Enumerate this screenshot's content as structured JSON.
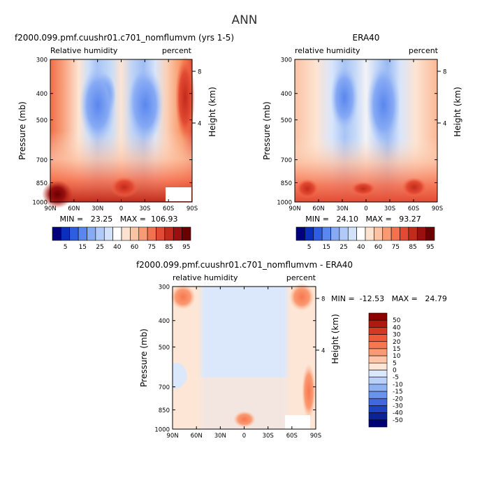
{
  "page_title": "ANN",
  "chart_data": [
    {
      "type": "contour",
      "panel": "model",
      "title": "f2000.099.pmf.cuushr01.c701_nomflumvm (yrs 1-5)",
      "variable_label": "Relative humidity",
      "units_label": "percent",
      "ylabel": "Pressure (mb)",
      "ylabel_right": "Height (km)",
      "x_ticks": [
        "90N",
        "60N",
        "30N",
        "0",
        "30S",
        "60S",
        "90S"
      ],
      "y_ticks": [
        "300",
        "400",
        "500",
        "700",
        "850",
        "1000"
      ],
      "y_right_ticks": [
        "8",
        "4"
      ],
      "stats_text": "MIN =   23.25   MAX =  106.93",
      "min": 23.25,
      "max": 106.93,
      "colorbar_labels": [
        "5",
        "15",
        "25",
        "40",
        "60",
        "75",
        "85",
        "95"
      ],
      "colorbar_colors": [
        "#00007f",
        "#0b2ebd",
        "#2f5de0",
        "#5a87ef",
        "#87aaf4",
        "#b0cbf9",
        "#d3e2fb",
        "#ffffff",
        "#fde2cf",
        "#fcc2a4",
        "#f89a74",
        "#f47150",
        "#e34a33",
        "#c22b1b",
        "#9a1010",
        "#6b0000"
      ]
    },
    {
      "type": "contour",
      "panel": "obs",
      "title": "ERA40",
      "variable_label": "relative humidity",
      "units_label": "percent",
      "ylabel": "Pressure (mb)",
      "ylabel_right": "Height (km)",
      "x_ticks": [
        "90N",
        "60N",
        "30N",
        "0",
        "30S",
        "60S",
        "90S"
      ],
      "y_ticks": [
        "300",
        "400",
        "500",
        "700",
        "850",
        "1000"
      ],
      "y_right_ticks": [
        "8",
        "4"
      ],
      "stats_text": "MIN =   24.10   MAX =   93.27",
      "min": 24.1,
      "max": 93.27,
      "colorbar_labels": [
        "5",
        "15",
        "25",
        "40",
        "60",
        "75",
        "85",
        "95"
      ]
    },
    {
      "type": "contour",
      "panel": "diff",
      "title": "f2000.099.pmf.cuushr01.c701_nomflumvm - ERA40",
      "variable_label": "relative humidity",
      "units_label": "percent",
      "ylabel": "Pressure (mb)",
      "ylabel_right": "Height (km)",
      "x_ticks": [
        "90N",
        "60N",
        "30N",
        "0",
        "30S",
        "60S",
        "90S"
      ],
      "y_ticks": [
        "300",
        "400",
        "500",
        "700",
        "850",
        "1000"
      ],
      "y_right_ticks": [
        "8",
        "4"
      ],
      "stats_text": "MIN =  -12.53   MAX =   24.79",
      "min": -12.53,
      "max": 24.79,
      "colorbar_labels": [
        "50",
        "40",
        "30",
        "20",
        "15",
        "10",
        "5",
        "0",
        "-5",
        "-10",
        "-15",
        "-20",
        "-30",
        "-40",
        "-50"
      ],
      "colorbar_colors": [
        "#8c0000",
        "#b01a0e",
        "#d33a22",
        "#ef5a38",
        "#f7784f",
        "#fa9a72",
        "#fcc5a8",
        "#fde6d6",
        "#dbe8fb",
        "#b9d1f7",
        "#8fb2f2",
        "#6a93ec",
        "#3f68dc",
        "#1e43c0",
        "#0a2496",
        "#000073"
      ]
    }
  ]
}
